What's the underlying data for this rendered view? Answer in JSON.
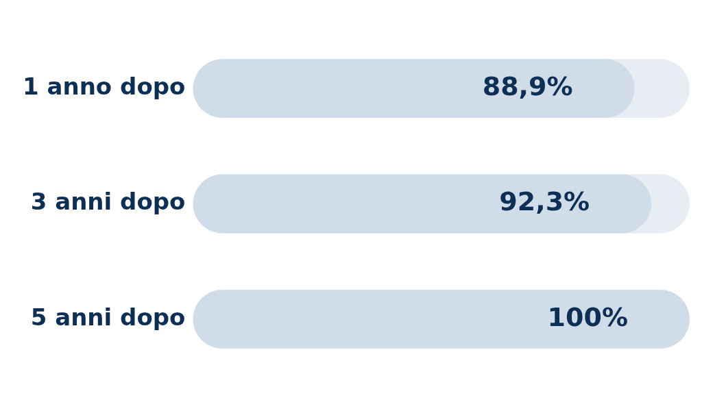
{
  "chart_data": {
    "type": "bar",
    "orientation": "horizontal",
    "categories": [
      "1 anno dopo",
      "3 anni dopo",
      "5 anni dopo"
    ],
    "values": [
      88.9,
      92.3,
      100
    ],
    "value_labels": [
      "88,9%",
      "92,3%",
      "100%"
    ],
    "color": "#d0dde9",
    "xlim": [
      0,
      100
    ],
    "grid": false,
    "legend": false,
    "tick_labels": "y"
  }
}
